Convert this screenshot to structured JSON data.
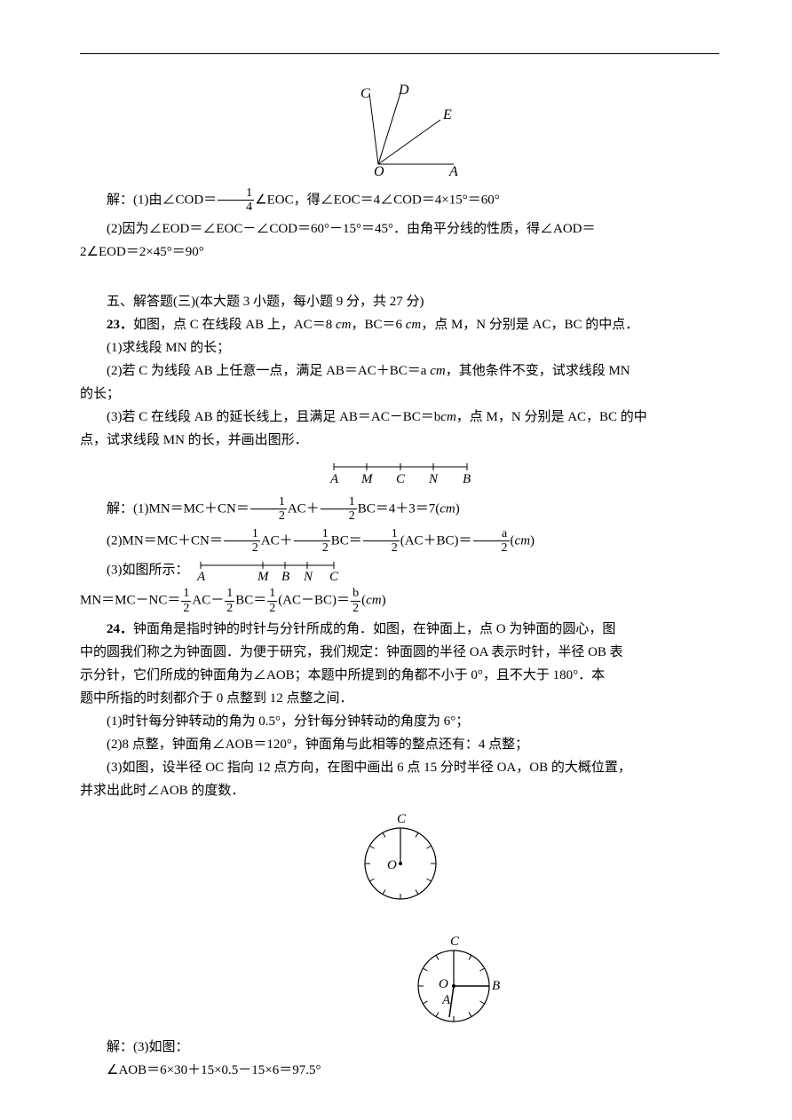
{
  "figure1": {
    "labels": {
      "C": "C",
      "D": "D",
      "E": "E",
      "O": "O",
      "A": "A"
    },
    "font": "italic 16px Times New Roman",
    "stroke": "#000000"
  },
  "solution1": {
    "line1_prefix": "解：(1)由∠COD＝",
    "frac1": {
      "num": "1",
      "den": "4"
    },
    "line1_suffix": "∠EOC，得∠EOC＝4∠COD＝4×15°＝60°",
    "line2": "(2)因为∠EOD＝∠EOC－∠COD＝60°－15°＝45°．由角平分线的性质，得∠AOD＝",
    "line3": "2∠EOD＝2×45°＝90°"
  },
  "section5": {
    "heading": "五、解答题(三)(本大题 3 小题，每小题 9 分，共 27 分)",
    "q23_num": "23．",
    "q23_stem": "如图，点 C 在线段 AB 上，AC＝8",
    "q23_unit1": " cm",
    "q23_mid1": "，BC＝6",
    "q23_unit2": " cm",
    "q23_mid2": "，点 M，N 分别是 AC，BC 的中点．",
    "q23_1": "(1)求线段 MN 的长；",
    "q23_2": "(2)若 C 为线段 AB 上任意一点，满足 AB＝AC＋BC＝a",
    "q23_2_unit": " cm",
    "q23_2_suffix": "，其他条件不变，试求线段 MN",
    "q23_2_line2": "的长；",
    "q23_3": "(3)若 C 在线段 AB 的延长线上，且满足 AB＝AC－BC＝b",
    "q23_3_unit": "cm",
    "q23_3_suffix": "，点 M，N 分别是 AC，BC 的中",
    "q23_3_line2": "点，试求线段 MN 的长，并画出图形．"
  },
  "figure2": {
    "labels": {
      "A": "A",
      "M": "M",
      "C": "C",
      "N": "N",
      "B": "B"
    },
    "font": "italic 15px Times New Roman",
    "stroke": "#000000"
  },
  "solution23": {
    "l1_prefix": "解：(1)MN＝MC＋CN＝",
    "f_half": {
      "num": "1",
      "den": "2"
    },
    "l1_mid1": "AC＋",
    "l1_mid2": "BC＝4＋3＝7(",
    "l1_cm": "cm",
    "l1_end": ")",
    "l2_prefix": "(2)MN＝MC＋CN＝",
    "l2_mid1": "AC＋",
    "l2_mid2": "BC＝",
    "l2_mid3": "(AC＋BC)＝",
    "f_a2": {
      "num": "a",
      "den": "2"
    },
    "l2_mid4": "(",
    "l2_cm": "cm",
    "l2_end": ")",
    "l3_prefix": "(3)如图所示：",
    "fig3": {
      "A": "A",
      "M": "M",
      "B": "B",
      "N": "N",
      "C": "C"
    },
    "l4_prefix": "MN＝MC－NC＝",
    "l4_mid1": "AC－",
    "l4_mid2": "BC＝",
    "l4_mid3": "(AC－BC)＝",
    "f_b2": {
      "num": "b",
      "den": "2"
    },
    "l4_mid4": "(",
    "l4_cm": "cm",
    "l4_end": ")"
  },
  "q24": {
    "num": "24．",
    "p1": "钟面角是指时钟的时针与分针所成的角．如图，在钟面上，点 O 为钟面的圆心，图",
    "p2": "中的圆我们称之为钟面圆．为便于研究，我们规定：钟面圆的半径 OA 表示时针，半径 OB 表",
    "p3": "示分针，它们所成的钟面角为∠AOB；本题中所提到的角都不小于 0°，且不大于 180°．本",
    "p4": "题中所指的时刻都介于 0 点整到 12 点整之间．",
    "s1": "(1)时针每分钟转动的角为 0.5°，分针每分钟转动的角度为 6°；",
    "s2": "(2)8 点整，钟面角∠AOB＝120°，钟面角与此相等的整点还有：4 点整；",
    "s3": "(3)如图，设半径 OC 指向 12 点方向，在图中画出 6 点 15 分时半径 OA，OB 的大概位置，",
    "s3b": "并求出此时∠AOB 的度数．"
  },
  "clock_labels": {
    "C": "C",
    "O": "O",
    "A": "A",
    "B": "B"
  },
  "clock_style": {
    "stroke": "#000000",
    "font": "italic 15px Times New Roman",
    "tick_count": 12,
    "radius": 40
  },
  "solution24": {
    "l1": "解：(3)如图：",
    "l2": "∠AOB＝6×30＋15×0.5－15×6＝97.5°"
  }
}
